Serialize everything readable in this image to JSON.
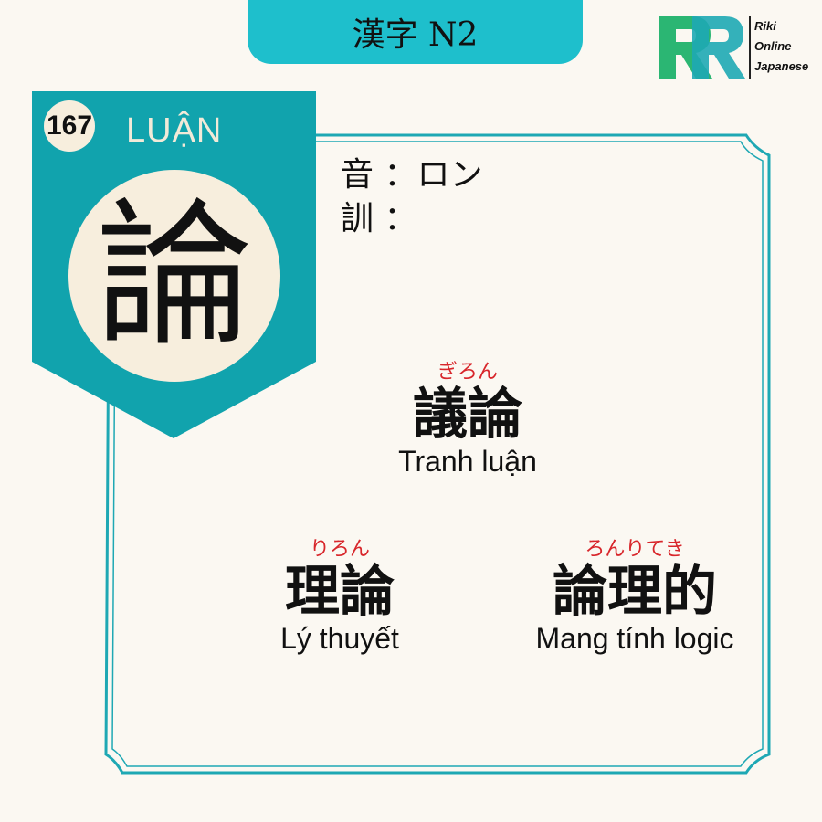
{
  "header": {
    "title": "漢字 N2"
  },
  "brand": {
    "line1": "Riki",
    "line2": "Online",
    "line3": "Japanese",
    "colors": [
      "#2bb673",
      "#1ebfcc",
      "#0e6f8a"
    ]
  },
  "kanji": {
    "number": "167",
    "reading": "LUẬN",
    "character": "論",
    "on_label": "音 ：ロン",
    "kun_label": "訓 ："
  },
  "vocabulary": [
    {
      "furigana": "ぎろん",
      "word": "議論",
      "meaning": "Tranh luận"
    },
    {
      "furigana": "りろん",
      "word": "理論",
      "meaning": "Lý thuyết"
    },
    {
      "furigana": "ろんりてき",
      "word": "論理的",
      "meaning": "Mang tính logic"
    }
  ],
  "colors": {
    "accent": "#1ebfcc",
    "banner": "#11a3ad",
    "background": "#fbf8f2",
    "furigana": "#d8262b"
  }
}
